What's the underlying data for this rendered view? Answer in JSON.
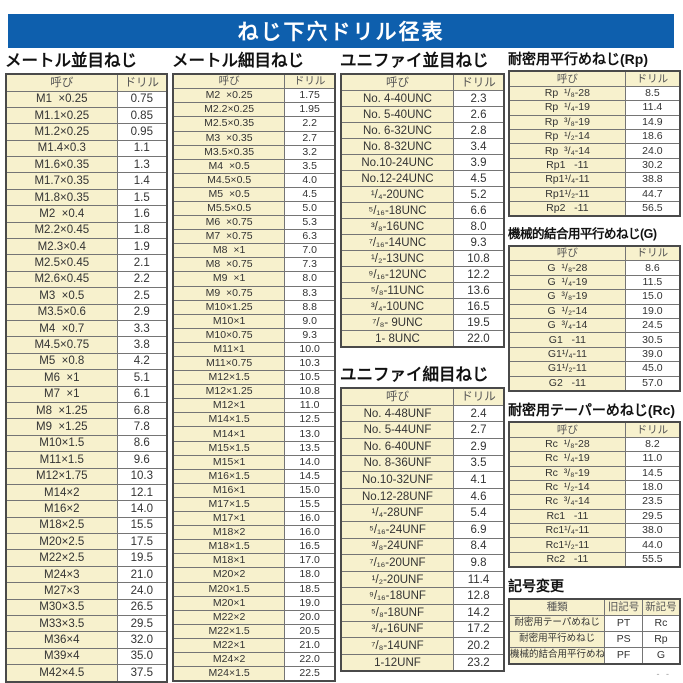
{
  "page_title": "ねじ下穴ドリル径表",
  "labels": {
    "name": "呼び",
    "drill": "ドリル"
  },
  "colors": {
    "header_bar": "#0e5fad",
    "cell_cream": "#f7f1cd",
    "border": "#4a4a4a"
  },
  "corner_mark": "- -",
  "sections": {
    "metric_coarse": {
      "title": "メートル並目ねじ",
      "rows": [
        [
          "M1  ×0.25",
          "0.75"
        ],
        [
          "M1.1×0.25",
          "0.85"
        ],
        [
          "M1.2×0.25",
          "0.95"
        ],
        [
          "M1.4×0.3",
          "1.1"
        ],
        [
          "M1.6×0.35",
          "1.3"
        ],
        [
          "M1.7×0.35",
          "1.4"
        ],
        [
          "M1.8×0.35",
          "1.5"
        ],
        [
          "M2  ×0.4",
          "1.6"
        ],
        [
          "M2.2×0.45",
          "1.8"
        ],
        [
          "M2.3×0.4",
          "1.9"
        ],
        [
          "M2.5×0.45",
          "2.1"
        ],
        [
          "M2.6×0.45",
          "2.2"
        ],
        [
          "M3  ×0.5",
          "2.5"
        ],
        [
          "M3.5×0.6",
          "2.9"
        ],
        [
          "M4  ×0.7",
          "3.3"
        ],
        [
          "M4.5×0.75",
          "3.8"
        ],
        [
          "M5  ×0.8",
          "4.2"
        ],
        [
          "M6  ×1",
          "5.1"
        ],
        [
          "M7  ×1",
          "6.1"
        ],
        [
          "M8  ×1.25",
          "6.8"
        ],
        [
          "M9  ×1.25",
          "7.8"
        ],
        [
          "M10×1.5",
          "8.6"
        ],
        [
          "M11×1.5",
          "9.6"
        ],
        [
          "M12×1.75",
          "10.3"
        ],
        [
          "M14×2",
          "12.1"
        ],
        [
          "M16×2",
          "14.0"
        ],
        [
          "M18×2.5",
          "15.5"
        ],
        [
          "M20×2.5",
          "17.5"
        ],
        [
          "M22×2.5",
          "19.5"
        ],
        [
          "M24×3",
          "21.0"
        ],
        [
          "M27×3",
          "24.0"
        ],
        [
          "M30×3.5",
          "26.5"
        ],
        [
          "M33×3.5",
          "29.5"
        ],
        [
          "M36×4",
          "32.0"
        ],
        [
          "M39×4",
          "35.0"
        ],
        [
          "M42×4.5",
          "37.5"
        ]
      ]
    },
    "metric_fine": {
      "title": "メートル細目ねじ",
      "rows": [
        [
          "M2  ×0.25",
          "1.75"
        ],
        [
          "M2.2×0.25",
          "1.95"
        ],
        [
          "M2.5×0.35",
          "2.2"
        ],
        [
          "M3  ×0.35",
          "2.7"
        ],
        [
          "M3.5×0.35",
          "3.2"
        ],
        [
          "M4  ×0.5",
          "3.5"
        ],
        [
          "M4.5×0.5",
          "4.0"
        ],
        [
          "M5  ×0.5",
          "4.5"
        ],
        [
          "M5.5×0.5",
          "5.0"
        ],
        [
          "M6  ×0.75",
          "5.3"
        ],
        [
          "M7  ×0.75",
          "6.3"
        ],
        [
          "M8  ×1",
          "7.0"
        ],
        [
          "M8  ×0.75",
          "7.3"
        ],
        [
          "M9  ×1",
          "8.0"
        ],
        [
          "M9  ×0.75",
          "8.3"
        ],
        [
          "M10×1.25",
          "8.8"
        ],
        [
          "M10×1",
          "9.0"
        ],
        [
          "M10×0.75",
          "9.3"
        ],
        [
          "M11×1",
          "10.0"
        ],
        [
          "M11×0.75",
          "10.3"
        ],
        [
          "M12×1.5",
          "10.5"
        ],
        [
          "M12×1.25",
          "10.8"
        ],
        [
          "M12×1",
          "11.0"
        ],
        [
          "M14×1.5",
          "12.5"
        ],
        [
          "M14×1",
          "13.0"
        ],
        [
          "M15×1.5",
          "13.5"
        ],
        [
          "M15×1",
          "14.0"
        ],
        [
          "M16×1.5",
          "14.5"
        ],
        [
          "M16×1",
          "15.0"
        ],
        [
          "M17×1.5",
          "15.5"
        ],
        [
          "M17×1",
          "16.0"
        ],
        [
          "M18×2",
          "16.0"
        ],
        [
          "M18×1.5",
          "16.5"
        ],
        [
          "M18×1",
          "17.0"
        ],
        [
          "M20×2",
          "18.0"
        ],
        [
          "M20×1.5",
          "18.5"
        ],
        [
          "M20×1",
          "19.0"
        ],
        [
          "M22×2",
          "20.0"
        ],
        [
          "M22×1.5",
          "20.5"
        ],
        [
          "M22×1",
          "21.0"
        ],
        [
          "M24×2",
          "22.0"
        ],
        [
          "M24×1.5",
          "22.5"
        ]
      ]
    },
    "unified_coarse": {
      "title": "ユニファイ並目ねじ",
      "rows": [
        [
          "No. 4-40UNC",
          "2.3"
        ],
        [
          "No. 5-40UNC",
          "2.6"
        ],
        [
          "No. 6-32UNC",
          "2.8"
        ],
        [
          "No. 8-32UNC",
          "3.4"
        ],
        [
          "No.10-24UNC",
          "3.9"
        ],
        [
          "No.12-24UNC",
          "4.5"
        ],
        [
          "¹/₄-20UNC",
          "5.2"
        ],
        [
          "⁵/₁₆-18UNC",
          "6.6"
        ],
        [
          "³/₈-16UNC",
          "8.0"
        ],
        [
          "⁷/₁₆-14UNC",
          "9.3"
        ],
        [
          "¹/₂-13UNC",
          "10.8"
        ],
        [
          "⁹/₁₆-12UNC",
          "12.2"
        ],
        [
          "⁵/₈-11UNC",
          "13.6"
        ],
        [
          "³/₄-10UNC",
          "16.5"
        ],
        [
          "⁷/₈- 9UNC",
          "19.5"
        ],
        [
          "1- 8UNC",
          "22.0"
        ]
      ]
    },
    "unified_fine": {
      "title": "ユニファイ細目ねじ",
      "rows": [
        [
          "No. 4-48UNF",
          "2.4"
        ],
        [
          "No. 5-44UNF",
          "2.7"
        ],
        [
          "No. 6-40UNF",
          "2.9"
        ],
        [
          "No. 8-36UNF",
          "3.5"
        ],
        [
          "No.10-32UNF",
          "4.1"
        ],
        [
          "No.12-28UNF",
          "4.6"
        ],
        [
          "¹/₄-28UNF",
          "5.4"
        ],
        [
          "⁵/₁₆-24UNF",
          "6.9"
        ],
        [
          "³/₈-24UNF",
          "8.4"
        ],
        [
          "⁷/₁₆-20UNF",
          "9.8"
        ],
        [
          "¹/₂-20UNF",
          "11.4"
        ],
        [
          "⁹/₁₆-18UNF",
          "12.8"
        ],
        [
          "⁵/₈-18UNF",
          "14.2"
        ],
        [
          "³/₄-16UNF",
          "17.2"
        ],
        [
          "⁷/₈-14UNF",
          "20.2"
        ],
        [
          "1-12UNF",
          "23.2"
        ]
      ]
    },
    "rp": {
      "title": "耐密用平行めねじ(Rp)",
      "rows": [
        [
          "Rp  ¹/₈-28",
          "8.5"
        ],
        [
          "Rp  ¹/₄-19",
          "11.4"
        ],
        [
          "Rp  ³/₈-19",
          "14.9"
        ],
        [
          "Rp  ¹/₂-14",
          "18.6"
        ],
        [
          "Rp  ³/₄-14",
          "24.0"
        ],
        [
          "Rp1   -11",
          "30.2"
        ],
        [
          "Rp1¹/₄-11",
          "38.8"
        ],
        [
          "Rp1¹/₂-11",
          "44.7"
        ],
        [
          "Rp2   -11",
          "56.5"
        ]
      ]
    },
    "g": {
      "title": "機械的結合用平行めねじ(G)",
      "rows": [
        [
          "G  ¹/₈-28",
          "8.6"
        ],
        [
          "G  ¹/₄-19",
          "11.5"
        ],
        [
          "G  ³/₈-19",
          "15.0"
        ],
        [
          "G  ¹/₂-14",
          "19.0"
        ],
        [
          "G  ³/₄-14",
          "24.5"
        ],
        [
          "G1   -11",
          "30.5"
        ],
        [
          "G1¹/₄-11",
          "39.0"
        ],
        [
          "G1¹/₂-11",
          "45.0"
        ],
        [
          "G2   -11",
          "57.0"
        ]
      ]
    },
    "rc": {
      "title": "耐密用テーパーめねじ(Rc)",
      "rows": [
        [
          "Rc  ¹/₈-28",
          "8.2"
        ],
        [
          "Rc  ¹/₄-19",
          "11.0"
        ],
        [
          "Rc  ³/₈-19",
          "14.5"
        ],
        [
          "Rc  ¹/₂-14",
          "18.0"
        ],
        [
          "Rc  ³/₄-14",
          "23.5"
        ],
        [
          "Rc1   -11",
          "29.5"
        ],
        [
          "Rc1¹/₄-11",
          "38.0"
        ],
        [
          "Rc1¹/₂-11",
          "44.0"
        ],
        [
          "Rc2   -11",
          "55.5"
        ]
      ]
    },
    "symbol_change": {
      "title": "記号変更",
      "headers": [
        "種類",
        "旧記号",
        "新記号"
      ],
      "rows": [
        [
          "耐密用テーパめねじ",
          "PT",
          "Rc"
        ],
        [
          "耐密用平行めねじ",
          "PS",
          "Rp"
        ],
        [
          "機械的結合用平行めねじ",
          "PF",
          "G"
        ]
      ]
    }
  }
}
